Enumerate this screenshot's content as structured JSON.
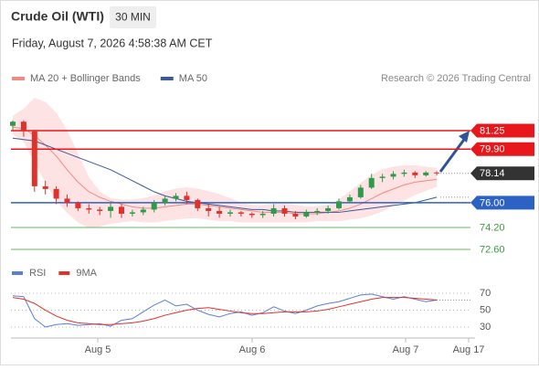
{
  "header": {
    "title": "Crude Oil (WTI)",
    "interval": "30 MIN",
    "timestamp": "Friday, August 7, 2026 4:58:38 AM CET",
    "copyright": "Research © 2026 Trading Central"
  },
  "chart_data": [
    {
      "type": "candlestick",
      "up_color": "#2f9a4a",
      "down_color": "#e0312b",
      "open": [
        81.6,
        81.9,
        81.2,
        77.2,
        77.0,
        76.3,
        76.0,
        75.6,
        75.5,
        75.4,
        75.7,
        75.2,
        75.3,
        75.5,
        76.0,
        76.3,
        76.5,
        76.2,
        75.6,
        75.4,
        75.2,
        75.3,
        75.2,
        75.1,
        75.2,
        75.6,
        75.2,
        75.0,
        75.3,
        75.4,
        75.6,
        76.1,
        76.4,
        77.1,
        77.8,
        77.9,
        78.1,
        78.2,
        78.0,
        78.2
      ],
      "high": [
        82.0,
        82.0,
        81.3,
        77.6,
        77.2,
        76.6,
        76.1,
        75.9,
        75.7,
        76.0,
        75.9,
        75.5,
        75.7,
        76.2,
        76.5,
        76.7,
        76.8,
        76.3,
        75.9,
        75.7,
        75.5,
        75.4,
        75.3,
        75.4,
        75.9,
        75.8,
        75.4,
        75.5,
        75.6,
        75.8,
        76.3,
        76.6,
        77.3,
        78.1,
        78.1,
        78.3,
        78.4,
        78.3,
        78.3,
        78.3
      ],
      "low": [
        81.3,
        80.8,
        76.8,
        76.6,
        75.9,
        75.7,
        75.4,
        75.2,
        75.1,
        74.9,
        74.9,
        75.0,
        75.1,
        75.3,
        75.8,
        76.1,
        75.9,
        75.4,
        75.0,
        74.9,
        75.0,
        75.0,
        74.9,
        74.9,
        75.0,
        75.0,
        74.8,
        74.9,
        75.1,
        75.2,
        75.5,
        76.0,
        76.3,
        77.0,
        77.5,
        77.7,
        77.9,
        77.8,
        77.9,
        78.0
      ],
      "close": [
        81.9,
        81.2,
        77.2,
        77.0,
        76.3,
        76.0,
        75.6,
        75.5,
        75.4,
        75.7,
        75.2,
        75.3,
        75.5,
        76.0,
        76.3,
        76.5,
        76.2,
        75.6,
        75.4,
        75.2,
        75.3,
        75.2,
        75.1,
        75.2,
        75.6,
        75.2,
        75.0,
        75.3,
        75.4,
        75.6,
        76.1,
        76.4,
        77.1,
        77.8,
        77.9,
        78.1,
        78.2,
        78.0,
        78.2,
        78.14
      ],
      "overlays": [
        {
          "name": "MA 20 + Bollinger Bands",
          "color": "#f08a84",
          "band_color": "#fde3e3",
          "values": [
            81.5,
            81.4,
            80.9,
            80.2,
            79.4,
            78.4,
            77.5,
            76.8,
            76.4,
            76.1,
            75.9,
            75.7,
            75.6,
            75.6,
            75.7,
            75.8,
            75.9,
            75.9,
            75.8,
            75.7,
            75.6,
            75.5,
            75.4,
            75.3,
            75.3,
            75.3,
            75.2,
            75.2,
            75.2,
            75.3,
            75.4,
            75.6,
            75.9,
            76.3,
            76.7,
            77.0,
            77.3,
            77.5,
            77.6,
            77.7
          ],
          "upper": [
            82.3,
            82.8,
            83.6,
            83.3,
            82.5,
            81.2,
            79.5,
            77.8,
            76.8,
            76.3,
            76.2,
            76.2,
            76.3,
            76.5,
            76.8,
            77.0,
            77.1,
            77.0,
            76.8,
            76.6,
            76.3,
            76.0,
            75.8,
            75.8,
            75.9,
            75.9,
            75.8,
            75.7,
            75.7,
            75.8,
            76.2,
            76.8,
            77.4,
            78.0,
            78.4,
            78.6,
            78.7,
            78.7,
            78.6,
            78.5
          ],
          "lower": [
            81.0,
            80.5,
            79.0,
            77.5,
            76.2,
            75.3,
            74.6,
            74.2,
            74.3,
            74.5,
            74.6,
            74.7,
            74.6,
            74.6,
            74.7,
            74.8,
            74.9,
            74.9,
            74.8,
            74.7,
            74.7,
            74.6,
            74.6,
            74.6,
            74.6,
            74.6,
            74.6,
            74.6,
            74.7,
            74.7,
            74.7,
            74.8,
            74.9,
            75.1,
            75.4,
            75.8,
            76.2,
            76.6,
            76.9,
            77.2
          ]
        },
        {
          "name": "MA 50",
          "color": "#3a5a9a",
          "values": [
            80.7,
            80.6,
            80.5,
            80.2,
            79.9,
            79.6,
            79.3,
            79.0,
            78.7,
            78.4,
            78.0,
            77.6,
            77.2,
            76.8,
            76.5,
            76.3,
            76.1,
            76.0,
            75.9,
            75.8,
            75.7,
            75.6,
            75.5,
            75.5,
            75.4,
            75.4,
            75.3,
            75.3,
            75.3,
            75.3,
            75.3,
            75.4,
            75.5,
            75.6,
            75.7,
            75.8,
            75.9,
            76.0,
            76.2,
            76.4
          ]
        }
      ],
      "levels": [
        {
          "value": 81.25,
          "color": "#e8171b",
          "line": true,
          "tag": true
        },
        {
          "value": {
            "value": 79.9,
            "label": "79.90"
          },
          "color": "#e8171b",
          "line": true,
          "tag": true
        },
        {
          "value": 78.14,
          "color": "#333333",
          "line": false,
          "tag": true
        },
        {
          "value": {
            "value": 76,
            "label": "76.00"
          },
          "color": "#2b62c4",
          "line": true,
          "tag": true
        },
        {
          "value": {
            "value": 74.2,
            "label": "74.20"
          },
          "color": "#3a9a3a",
          "line": true,
          "tag": false
        },
        {
          "value": {
            "value": 72.6,
            "label": "72.60"
          },
          "color": "#3a9a3a",
          "line": true,
          "tag": false
        }
      ],
      "ylim": [
        71.85,
        82.5
      ],
      "x_labels": [
        "Aug 5",
        "Aug 6",
        "Aug 7",
        "Aug 17"
      ]
    },
    {
      "type": "line",
      "series": [
        {
          "name": "RSI",
          "color": "#5b7fd6",
          "values": [
            67,
            66,
            40,
            30,
            33,
            34,
            32,
            33,
            34,
            31,
            38,
            40,
            48,
            56,
            62,
            55,
            57,
            50,
            45,
            42,
            46,
            48,
            44,
            47,
            54,
            49,
            46,
            50,
            55,
            58,
            60,
            64,
            68,
            69,
            66,
            63,
            66,
            63,
            60,
            62
          ]
        },
        {
          "name": "9MA",
          "color": "#e0312b",
          "values": [
            65,
            63,
            58,
            50,
            43,
            38,
            35,
            34,
            33,
            33,
            34,
            35,
            37,
            40,
            44,
            47,
            50,
            52,
            53,
            51,
            49,
            47,
            46,
            46,
            47,
            48,
            48,
            48,
            49,
            51,
            54,
            57,
            60,
            63,
            65,
            65,
            65,
            64,
            63,
            62
          ]
        }
      ],
      "ylim": [
        19.2,
        87.3
      ],
      "yticks": [
        70,
        50,
        30
      ]
    }
  ]
}
